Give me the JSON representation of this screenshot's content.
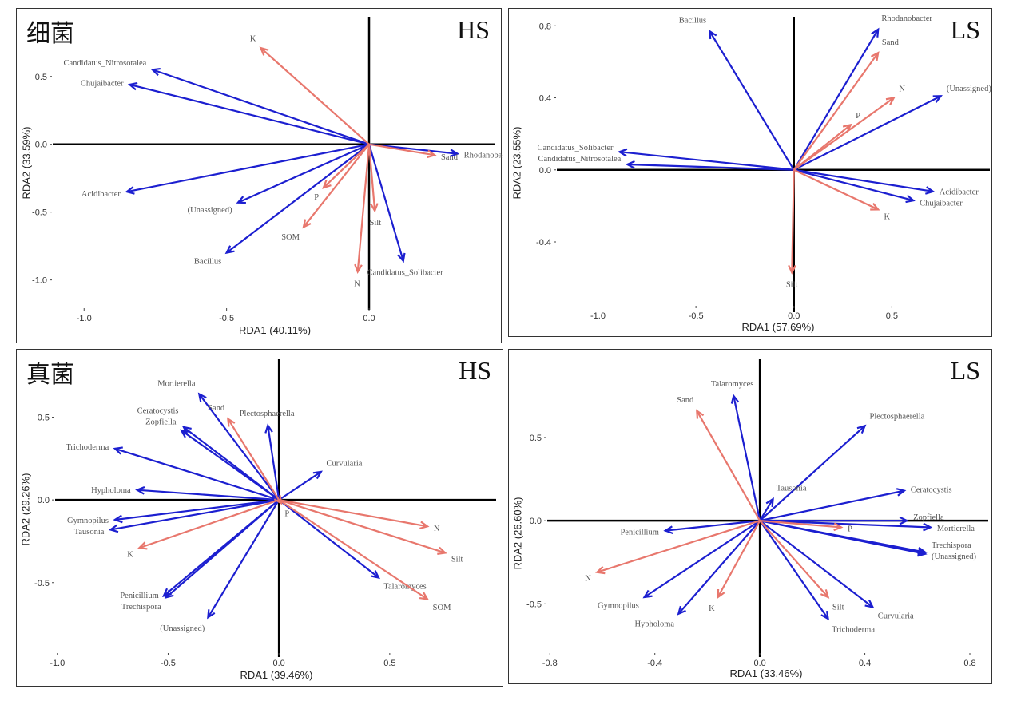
{
  "colors": {
    "species": "#1c1fd0",
    "environment": "#e8776d",
    "label_text": "#555555",
    "axis": "#000000"
  },
  "chart_data": [
    {
      "type": "scatter",
      "title": "细菌",
      "corner_label": "HS",
      "xlabel": "RDA1 (40.11%)",
      "ylabel": "RDA2 (33.59%)",
      "xlim": [
        -1.11,
        0.44
      ],
      "ylim": [
        -1.22,
        0.94
      ],
      "xticks": [
        {
          "v": -1.0,
          "label": "-1.0"
        },
        {
          "v": -0.5,
          "label": "-0.5"
        },
        {
          "v": 0.0,
          "label": "0.0"
        }
      ],
      "yticks": [
        {
          "v": 0.5,
          "label": "0.5"
        },
        {
          "v": 0.0,
          "label": "0.0"
        },
        {
          "v": -0.5,
          "label": "-0.5"
        },
        {
          "v": -1.0,
          "label": "-1.0"
        }
      ],
      "species": [
        {
          "name": "Candidatus_Nitrosotalea",
          "x": -0.76,
          "y": 0.55
        },
        {
          "name": "Chujaibacter",
          "x": -0.84,
          "y": 0.44
        },
        {
          "name": "Acidibacter",
          "x": -0.85,
          "y": -0.35
        },
        {
          "name": "(Unassigned)",
          "x": -0.46,
          "y": -0.43
        },
        {
          "name": "Bacillus",
          "x": -0.5,
          "y": -0.8
        },
        {
          "name": "Candidatus_Solibacter",
          "x": 0.12,
          "y": -0.86
        },
        {
          "name": "Rhodanobacter",
          "x": 0.31,
          "y": -0.07
        }
      ],
      "environment": [
        {
          "name": "K",
          "x": -0.38,
          "y": 0.71
        },
        {
          "name": "P",
          "x": -0.16,
          "y": -0.32
        },
        {
          "name": "SOM",
          "x": -0.23,
          "y": -0.61
        },
        {
          "name": "N",
          "x": -0.04,
          "y": -0.94
        },
        {
          "name": "Silt",
          "x": 0.02,
          "y": -0.49
        },
        {
          "name": "Sand",
          "x": 0.23,
          "y": -0.08
        }
      ]
    },
    {
      "type": "scatter",
      "title": "",
      "corner_label": "LS",
      "xlabel": "RDA1 (57.69%)",
      "ylabel": "RDA2 (23.55%)",
      "xlim": [
        -1.21,
        1.0
      ],
      "ylim": [
        -0.79,
        0.85
      ],
      "xticks": [
        {
          "v": -1.0,
          "label": "-1.0"
        },
        {
          "v": -0.5,
          "label": "-0.5"
        },
        {
          "v": 0.0,
          "label": "0.0"
        },
        {
          "v": 0.5,
          "label": "0.5"
        }
      ],
      "yticks": [
        {
          "v": 0.8,
          "label": "0.8"
        },
        {
          "v": 0.4,
          "label": "0.4"
        },
        {
          "v": 0.0,
          "label": "0.0"
        },
        {
          "v": -0.4,
          "label": "-0.4"
        }
      ],
      "species": [
        {
          "name": "Bacillus",
          "x": -0.43,
          "y": 0.77
        },
        {
          "name": "Rhodanobacter",
          "x": 0.43,
          "y": 0.78
        },
        {
          "name": "(Unassigned)",
          "x": 0.75,
          "y": 0.41
        },
        {
          "name": "Candidatus_Solibacter",
          "x": -0.89,
          "y": 0.1
        },
        {
          "name": "Candidatus_Nitrosotalea",
          "x": -0.85,
          "y": 0.03
        },
        {
          "name": "Acidibacter",
          "x": 0.71,
          "y": -0.12
        },
        {
          "name": "Chujaibacter",
          "x": 0.61,
          "y": -0.17
        }
      ],
      "environment": [
        {
          "name": "Sand",
          "x": 0.43,
          "y": 0.65
        },
        {
          "name": "N",
          "x": 0.51,
          "y": 0.4
        },
        {
          "name": "P",
          "x": 0.29,
          "y": 0.25
        },
        {
          "name": "K",
          "x": 0.43,
          "y": -0.22
        },
        {
          "name": "Silt",
          "x": -0.01,
          "y": -0.57
        }
      ]
    },
    {
      "type": "scatter",
      "title": "真菌",
      "corner_label": "HS",
      "xlabel": "RDA1 (39.46%)",
      "ylabel": "RDA2 (29.26%)",
      "xlim": [
        -1.01,
        0.98
      ],
      "ylim": [
        -0.95,
        0.85
      ],
      "xticks": [
        {
          "v": -1.0,
          "label": "-1.0"
        },
        {
          "v": -0.5,
          "label": "-0.5"
        },
        {
          "v": 0.0,
          "label": "0.0"
        },
        {
          "v": 0.5,
          "label": "0.5"
        }
      ],
      "yticks": [
        {
          "v": 0.5,
          "label": "0.5"
        },
        {
          "v": 0.0,
          "label": "0.0"
        },
        {
          "v": -0.5,
          "label": "-0.5"
        }
      ],
      "species": [
        {
          "name": "Mortierella",
          "x": -0.36,
          "y": 0.64
        },
        {
          "name": "Plectosphaerella",
          "x": -0.05,
          "y": 0.45
        },
        {
          "name": "Ceratocystis",
          "x": -0.43,
          "y": 0.44
        },
        {
          "name": "Zopfiella",
          "x": -0.44,
          "y": 0.42
        },
        {
          "name": "Trichoderma",
          "x": -0.74,
          "y": 0.31
        },
        {
          "name": "Curvularia",
          "x": 0.19,
          "y": 0.17
        },
        {
          "name": "Hypholoma",
          "x": -0.64,
          "y": 0.06
        },
        {
          "name": "Gymnopilus",
          "x": -0.74,
          "y": -0.12
        },
        {
          "name": "Tausonia",
          "x": -0.76,
          "y": -0.18
        },
        {
          "name": "Penicillium",
          "x": -0.52,
          "y": -0.58
        },
        {
          "name": "Trechispora",
          "x": -0.51,
          "y": -0.59
        },
        {
          "name": "(Unassigned)",
          "x": -0.32,
          "y": -0.71
        },
        {
          "name": "Talaromyces",
          "x": 0.45,
          "y": -0.47
        }
      ],
      "environment": [
        {
          "name": "Sand",
          "x": -0.23,
          "y": 0.49
        },
        {
          "name": "K",
          "x": -0.63,
          "y": -0.29
        },
        {
          "name": "P",
          "x": 0.01,
          "y": -0.02
        },
        {
          "name": "N",
          "x": 0.67,
          "y": -0.16
        },
        {
          "name": "Silt",
          "x": 0.75,
          "y": -0.32
        },
        {
          "name": "SOM",
          "x": 0.67,
          "y": -0.6
        }
      ]
    },
    {
      "type": "scatter",
      "title": "",
      "corner_label": "LS",
      "xlabel": "RDA1 (33.46%)",
      "ylabel": "RDA2 (26.60%)",
      "xlim": [
        -0.81,
        0.87
      ],
      "ylim": [
        -0.82,
        0.97
      ],
      "xticks": [
        {
          "v": -0.8,
          "label": "-0.8"
        },
        {
          "v": -0.4,
          "label": "-0.4"
        },
        {
          "v": 0.0,
          "label": "0.0"
        },
        {
          "v": 0.4,
          "label": "0.4"
        },
        {
          "v": 0.8,
          "label": "0.8"
        }
      ],
      "yticks": [
        {
          "v": 0.5,
          "label": "0.5"
        },
        {
          "v": 0.0,
          "label": "0.0"
        },
        {
          "v": -0.5,
          "label": "-0.5"
        }
      ],
      "species": [
        {
          "name": "Talaromyces",
          "x": -0.1,
          "y": 0.75
        },
        {
          "name": "Plectosphaerella",
          "x": 0.4,
          "y": 0.57
        },
        {
          "name": "Tausonia",
          "x": 0.05,
          "y": 0.13
        },
        {
          "name": "Ceratocystis",
          "x": 0.55,
          "y": 0.18
        },
        {
          "name": "Zopfiella",
          "x": 0.56,
          "y": 0.0
        },
        {
          "name": "Mortierella",
          "x": 0.65,
          "y": -0.04
        },
        {
          "name": "Trechispora",
          "x": 0.63,
          "y": -0.19
        },
        {
          "name": "(Unassigned)",
          "x": 0.63,
          "y": -0.2
        },
        {
          "name": "Penicillium",
          "x": -0.36,
          "y": -0.06
        },
        {
          "name": "Gymnopilus",
          "x": -0.44,
          "y": -0.46
        },
        {
          "name": "Hypholoma",
          "x": -0.31,
          "y": -0.56
        },
        {
          "name": "Trichoderma",
          "x": 0.26,
          "y": -0.59
        },
        {
          "name": "Curvularia",
          "x": 0.43,
          "y": -0.52
        }
      ],
      "environment": [
        {
          "name": "Sand",
          "x": -0.24,
          "y": 0.66
        },
        {
          "name": "P",
          "x": 0.31,
          "y": -0.04
        },
        {
          "name": "N",
          "x": -0.62,
          "y": -0.31
        },
        {
          "name": "K",
          "x": -0.16,
          "y": -0.46
        },
        {
          "name": "Silt",
          "x": 0.26,
          "y": -0.46
        }
      ]
    }
  ]
}
